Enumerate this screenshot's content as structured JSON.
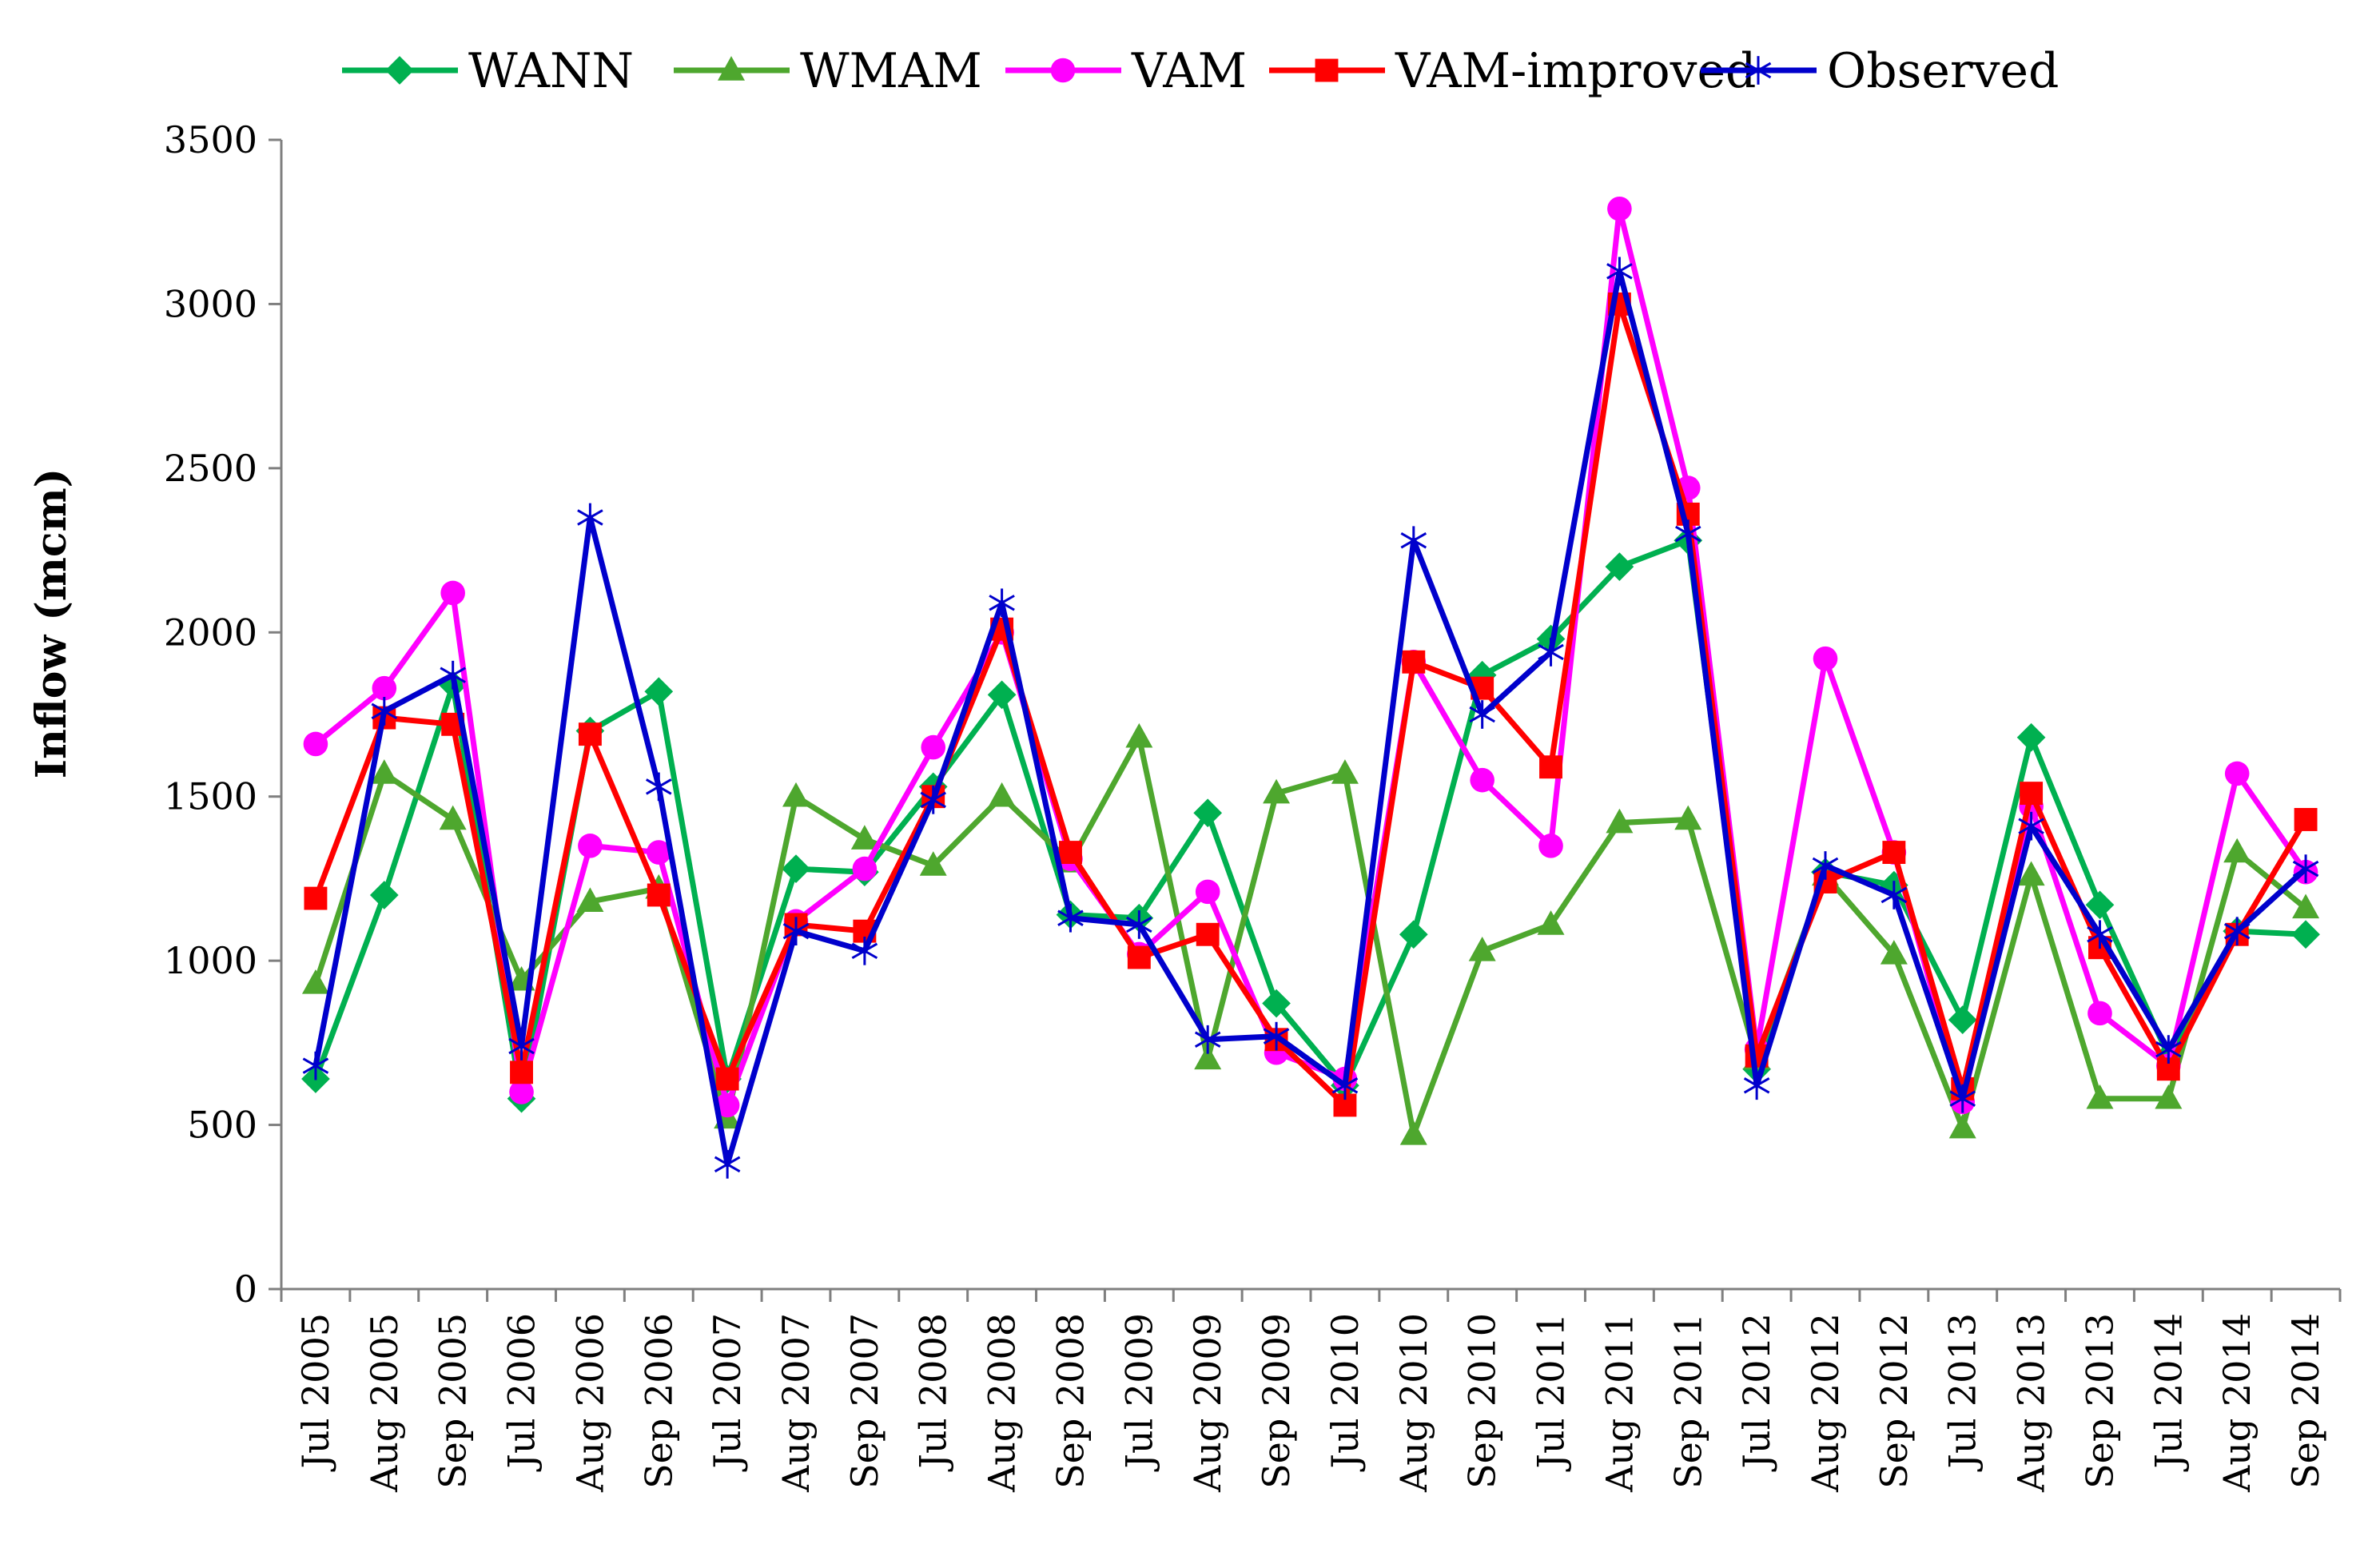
{
  "chart_data": {
    "type": "line",
    "title": "",
    "xlabel": "",
    "ylabel": "Inflow (mcm)",
    "ylim": [
      0,
      3500
    ],
    "yticks": [
      0,
      500,
      1000,
      1500,
      2000,
      2500,
      3000,
      3500
    ],
    "ytick_labels": [
      "0",
      "500",
      "1000",
      "1500",
      "2000",
      "2500",
      "3000",
      "3500"
    ],
    "grid": false,
    "legend_position": "top",
    "categories": [
      "Jul 2005",
      "Aug 2005",
      "Sep 2005",
      "Jul 2006",
      "Aug 2006",
      "Sep 2006",
      "Jul 2007",
      "Aug 2007",
      "Sep 2007",
      "Jul 2008",
      "Aug 2008",
      "Sep 2008",
      "Jul 2009",
      "Aug 2009",
      "Sep 2009",
      "Jul 2010",
      "Aug 2010",
      "Sep 2010",
      "Jul 2011",
      "Aug 2011",
      "Sep 2011",
      "Jul 2012",
      "Aug 2012",
      "Sep 2012",
      "Jul 2013",
      "Aug 2013",
      "Sep 2013",
      "Jul 2014",
      "Aug 2014",
      "Sep 2014"
    ],
    "series": [
      {
        "name": "WANN",
        "color": "#00B050",
        "marker": "diamond",
        "values": [
          640,
          1200,
          1840,
          580,
          1700,
          1820,
          640,
          1280,
          1270,
          1530,
          1810,
          1140,
          1130,
          1450,
          870,
          620,
          1080,
          1870,
          1980,
          2200,
          2280,
          670,
          1270,
          1230,
          820,
          1680,
          1170,
          710,
          1090,
          1080
        ]
      },
      {
        "name": "WMAM",
        "color": "#4EA72E",
        "marker": "triangle",
        "values": [
          930,
          1570,
          1430,
          940,
          1180,
          1220,
          520,
          1500,
          1370,
          1290,
          1500,
          1300,
          1680,
          700,
          1510,
          1570,
          470,
          1030,
          1110,
          1420,
          1430,
          700,
          1260,
          1020,
          490,
          1260,
          580,
          580,
          1330,
          1160
        ]
      },
      {
        "name": "VAM",
        "color": "#FF00FF",
        "marker": "circle",
        "values": [
          1660,
          1830,
          2120,
          600,
          1350,
          1330,
          560,
          1120,
          1280,
          1650,
          2000,
          1310,
          1020,
          1210,
          720,
          640,
          1910,
          1550,
          1350,
          3290,
          2440,
          730,
          1920,
          1330,
          570,
          1470,
          840,
          680,
          1570,
          1270
        ]
      },
      {
        "name": "VAM-improved",
        "color": "#FF0000",
        "marker": "square",
        "values": [
          1190,
          1740,
          1720,
          660,
          1690,
          1200,
          640,
          1110,
          1090,
          1500,
          2010,
          1330,
          1010,
          1080,
          760,
          560,
          1910,
          1830,
          1590,
          3000,
          2360,
          710,
          1240,
          1330,
          610,
          1510,
          1040,
          670,
          1080,
          1430
        ]
      },
      {
        "name": "Observed",
        "color": "#0000CC",
        "marker": "star",
        "values": [
          680,
          1760,
          1870,
          740,
          2350,
          1530,
          380,
          1090,
          1030,
          1490,
          2090,
          1130,
          1110,
          760,
          770,
          620,
          2280,
          1750,
          1940,
          3100,
          2300,
          620,
          1290,
          1200,
          580,
          1410,
          1080,
          730,
          1090,
          1280
        ]
      }
    ]
  }
}
